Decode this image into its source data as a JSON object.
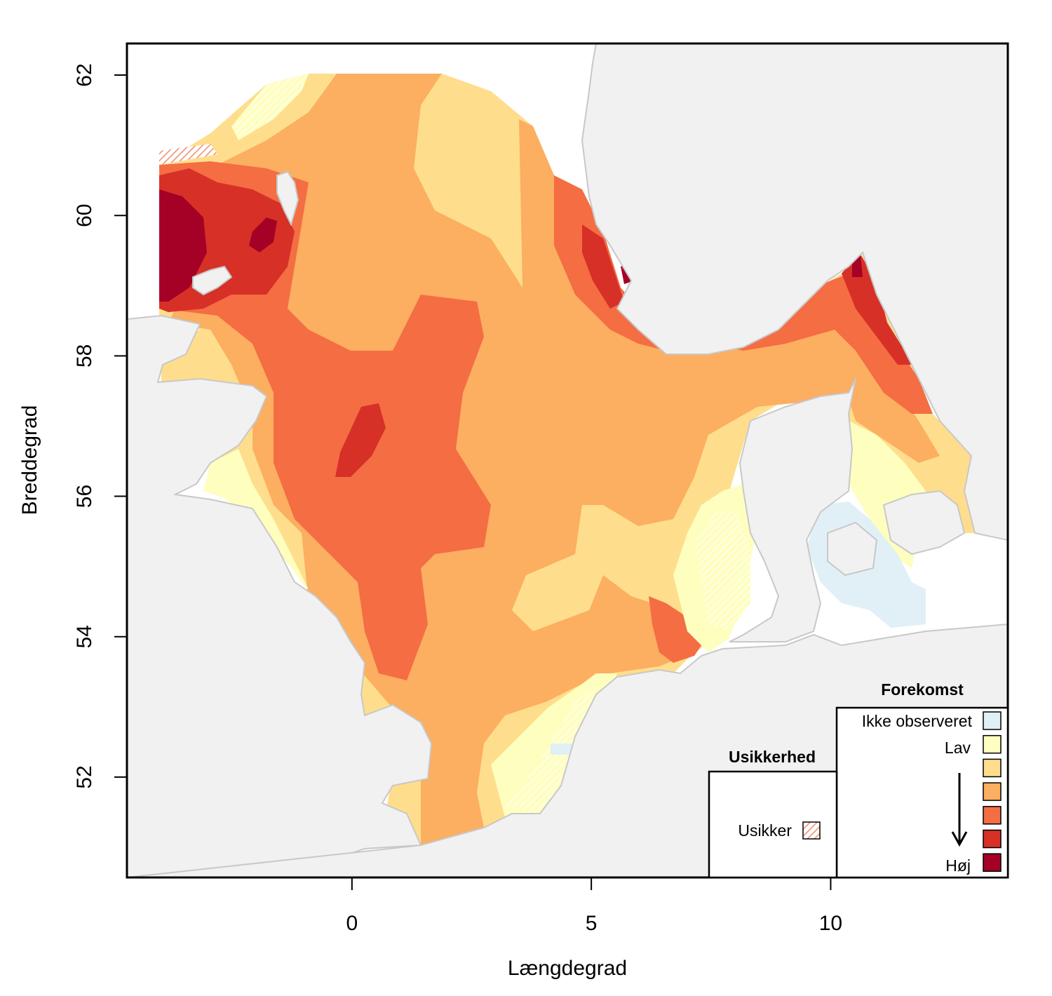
{
  "map": {
    "xlabel": "Længdegrad",
    "ylabel": "Breddegrad",
    "x_ticks": [
      0,
      5,
      10
    ],
    "y_ticks": [
      52,
      54,
      56,
      58,
      60,
      62
    ],
    "x_range": [
      -4.7,
      13.7
    ],
    "y_range": [
      50.57,
      62.45
    ]
  },
  "legend_occurrence": {
    "title": "Forekomst",
    "not_observed_label": "Ikke observeret",
    "low_label": "Lav",
    "high_label": "Høj",
    "colors": [
      "#e0f0f6",
      "#fefebf",
      "#fede8c",
      "#fcae61",
      "#f46d43",
      "#d73027",
      "#a50026"
    ]
  },
  "legend_uncertainty": {
    "title": "Usikkerhed",
    "uncertain_label": "Usikker"
  },
  "colors": {
    "land": "#f1f1f1",
    "coast": "#c8c8c8"
  }
}
